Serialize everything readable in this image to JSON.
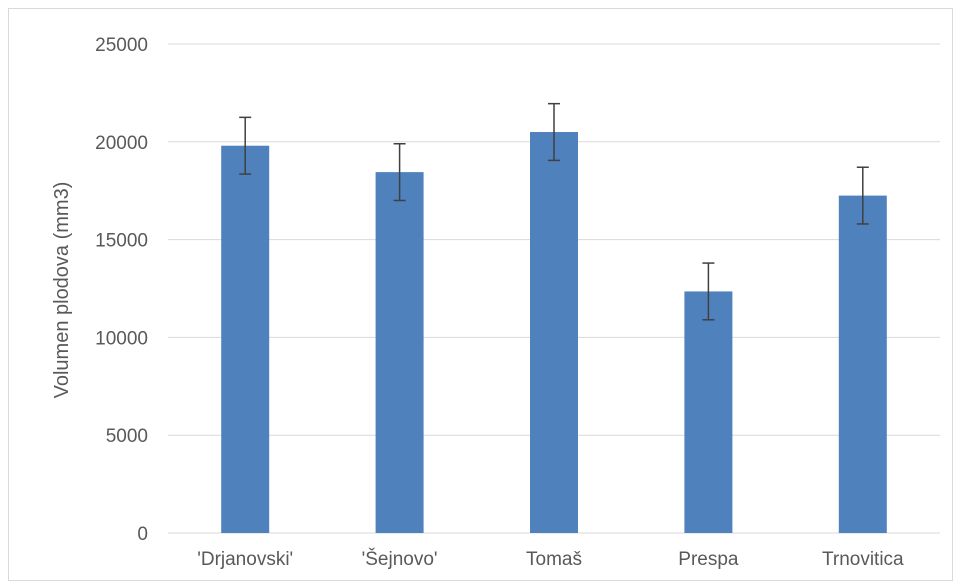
{
  "chart_data": {
    "type": "bar",
    "title": "",
    "xlabel": "",
    "ylabel": "Volumen plodova (mm3)",
    "categories": [
      "'Drjanovski'",
      "'Šejnovo'",
      "Tomaš",
      "Prespa",
      "Trnovitica"
    ],
    "values": [
      19800,
      18450,
      20500,
      12350,
      17250
    ],
    "error_bars": [
      {
        "low": 18350,
        "high": 21250
      },
      {
        "low": 17000,
        "high": 19900
      },
      {
        "low": 19050,
        "high": 21950
      },
      {
        "low": 10900,
        "high": 13800
      },
      {
        "low": 15800,
        "high": 18700
      }
    ],
    "ylim": [
      0,
      25000
    ],
    "yticks": [
      0,
      5000,
      10000,
      15000,
      20000,
      25000
    ],
    "ytick_labels": [
      "0",
      "5000",
      "10000",
      "15000",
      "20000",
      "25000"
    ],
    "grid": true,
    "legend": "none",
    "colors": {
      "bar": "#4f81bd",
      "gridline": "#d9d9d9",
      "error_bar": "#404040",
      "text": "#595959"
    }
  }
}
